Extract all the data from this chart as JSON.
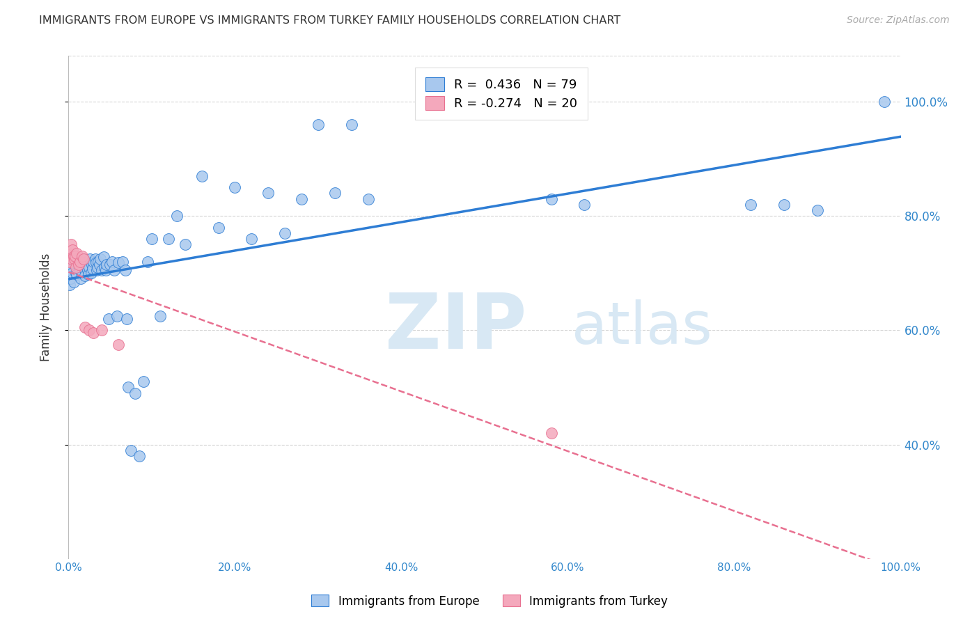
{
  "title": "IMMIGRANTS FROM EUROPE VS IMMIGRANTS FROM TURKEY FAMILY HOUSEHOLDS CORRELATION CHART",
  "source": "Source: ZipAtlas.com",
  "ylabel": "Family Households",
  "watermark_zip": "ZIP",
  "watermark_atlas": "atlas",
  "legend_europe": "Immigrants from Europe",
  "legend_turkey": "Immigrants from Turkey",
  "R_europe": 0.436,
  "N_europe": 79,
  "R_turkey": -0.274,
  "N_turkey": 20,
  "europe_x": [
    0.001,
    0.002,
    0.003,
    0.004,
    0.005,
    0.006,
    0.007,
    0.008,
    0.009,
    0.01,
    0.011,
    0.012,
    0.013,
    0.014,
    0.015,
    0.016,
    0.017,
    0.018,
    0.019,
    0.02,
    0.021,
    0.022,
    0.023,
    0.024,
    0.025,
    0.026,
    0.027,
    0.028,
    0.029,
    0.03,
    0.032,
    0.033,
    0.034,
    0.035,
    0.036,
    0.037,
    0.038,
    0.04,
    0.042,
    0.043,
    0.045,
    0.046,
    0.048,
    0.05,
    0.052,
    0.055,
    0.058,
    0.06,
    0.065,
    0.068,
    0.07,
    0.072,
    0.075,
    0.08,
    0.085,
    0.09,
    0.095,
    0.1,
    0.11,
    0.12,
    0.13,
    0.14,
    0.16,
    0.18,
    0.2,
    0.22,
    0.24,
    0.26,
    0.28,
    0.3,
    0.32,
    0.34,
    0.36,
    0.58,
    0.62,
    0.82,
    0.86,
    0.9,
    0.98
  ],
  "europe_y": [
    68.0,
    69.0,
    70.5,
    71.0,
    70.0,
    68.5,
    72.0,
    71.5,
    70.0,
    69.8,
    71.5,
    72.0,
    71.0,
    70.5,
    69.0,
    70.2,
    71.8,
    72.5,
    70.8,
    69.5,
    71.2,
    72.0,
    70.5,
    69.8,
    71.0,
    72.5,
    70.0,
    71.5,
    70.8,
    72.0,
    72.5,
    71.8,
    70.5,
    71.0,
    72.0,
    71.5,
    72.5,
    70.5,
    72.8,
    71.0,
    70.5,
    71.5,
    62.0,
    71.5,
    72.0,
    70.5,
    62.5,
    71.8,
    72.0,
    70.5,
    62.0,
    50.0,
    39.0,
    49.0,
    38.0,
    51.0,
    72.0,
    76.0,
    62.5,
    76.0,
    80.0,
    75.0,
    87.0,
    78.0,
    85.0,
    76.0,
    84.0,
    77.0,
    83.0,
    96.0,
    84.0,
    96.0,
    83.0,
    83.0,
    82.0,
    82.0,
    82.0,
    81.0,
    100.0
  ],
  "turkey_x": [
    0.001,
    0.002,
    0.003,
    0.004,
    0.005,
    0.006,
    0.007,
    0.008,
    0.009,
    0.01,
    0.012,
    0.014,
    0.016,
    0.018,
    0.02,
    0.025,
    0.03,
    0.04,
    0.06,
    0.58
  ],
  "turkey_y": [
    72.0,
    73.5,
    75.0,
    72.5,
    74.0,
    73.0,
    72.5,
    73.0,
    71.0,
    73.5,
    71.5,
    72.0,
    73.0,
    72.5,
    60.5,
    60.0,
    59.5,
    60.0,
    57.5,
    42.0
  ],
  "europe_color": "#A8C8EE",
  "turkey_color": "#F4A8BC",
  "europe_line_color": "#2E7DD4",
  "turkey_line_color": "#E87090",
  "background_color": "#FFFFFF",
  "grid_color": "#CCCCCC",
  "right_axis_color": "#3388CC",
  "title_color": "#333333",
  "watermark_color": "#D8E8F4",
  "xlim": [
    0.0,
    1.0
  ],
  "ylim": [
    20.0,
    108.0
  ],
  "yticks": [
    40.0,
    60.0,
    80.0,
    100.0
  ],
  "ytick_labels": [
    "40.0%",
    "60.0%",
    "80.0%",
    "100.0%"
  ],
  "xtick_labels": [
    "0.0%",
    "20.0%",
    "40.0%",
    "60.0%",
    "80.0%",
    "100.0%"
  ],
  "xticks": [
    0.0,
    0.2,
    0.4,
    0.6,
    0.8,
    1.0
  ]
}
